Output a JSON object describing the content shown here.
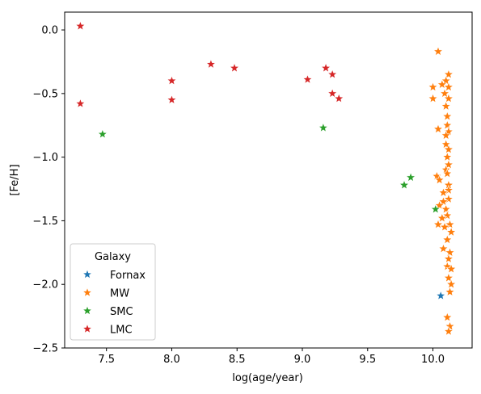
{
  "chart_data": {
    "type": "scatter",
    "xlabel": "log(age/year)",
    "ylabel": "[Fe/H]",
    "xlim": [
      7.18,
      10.3
    ],
    "ylim": [
      -2.5,
      0.14
    ],
    "xticks": [
      7.5,
      8.0,
      8.5,
      9.0,
      9.5,
      10.0
    ],
    "xtick_labels": [
      "7.5",
      "8.0",
      "8.5",
      "9.0",
      "9.5",
      "10.0"
    ],
    "yticks": [
      0.0,
      -0.5,
      -1.0,
      -1.5,
      -2.0,
      -2.5
    ],
    "ytick_labels": [
      "0.0",
      "−0.5",
      "−1.0",
      "−1.5",
      "−2.0",
      "−2.5"
    ],
    "marker": "star",
    "legend": {
      "title": "Galaxy",
      "placement": "lower-left"
    },
    "series": [
      {
        "name": "Fornax",
        "color": "#1f77b4",
        "points": [
          [
            10.06,
            -2.09
          ]
        ]
      },
      {
        "name": "MW",
        "color": "#ff7f0e",
        "points": [
          [
            10.04,
            -0.17
          ],
          [
            10.12,
            -0.35
          ],
          [
            10.1,
            -0.4
          ],
          [
            10.07,
            -0.43
          ],
          [
            10.0,
            -0.45
          ],
          [
            10.12,
            -0.45
          ],
          [
            10.09,
            -0.5
          ],
          [
            10.0,
            -0.54
          ],
          [
            10.12,
            -0.54
          ],
          [
            10.1,
            -0.6
          ],
          [
            10.11,
            -0.68
          ],
          [
            10.11,
            -0.75
          ],
          [
            10.04,
            -0.78
          ],
          [
            10.12,
            -0.8
          ],
          [
            10.1,
            -0.83
          ],
          [
            10.1,
            -0.9
          ],
          [
            10.12,
            -0.94
          ],
          [
            10.11,
            -1.0
          ],
          [
            10.12,
            -1.06
          ],
          [
            10.1,
            -1.1
          ],
          [
            10.11,
            -1.13
          ],
          [
            10.03,
            -1.15
          ],
          [
            10.05,
            -1.18
          ],
          [
            10.12,
            -1.22
          ],
          [
            10.12,
            -1.26
          ],
          [
            10.08,
            -1.28
          ],
          [
            10.12,
            -1.33
          ],
          [
            10.08,
            -1.35
          ],
          [
            10.05,
            -1.38
          ],
          [
            10.1,
            -1.41
          ],
          [
            10.11,
            -1.46
          ],
          [
            10.07,
            -1.48
          ],
          [
            10.04,
            -1.53
          ],
          [
            10.13,
            -1.53
          ],
          [
            10.09,
            -1.55
          ],
          [
            10.14,
            -1.59
          ],
          [
            10.11,
            -1.65
          ],
          [
            10.08,
            -1.72
          ],
          [
            10.13,
            -1.75
          ],
          [
            10.12,
            -1.8
          ],
          [
            10.11,
            -1.86
          ],
          [
            10.14,
            -1.88
          ],
          [
            10.12,
            -1.95
          ],
          [
            10.14,
            -2.0
          ],
          [
            10.13,
            -2.06
          ],
          [
            10.11,
            -2.26
          ],
          [
            10.13,
            -2.33
          ],
          [
            10.12,
            -2.37
          ]
        ]
      },
      {
        "name": "SMC",
        "color": "#2ca02c",
        "points": [
          [
            7.47,
            -0.82
          ],
          [
            9.16,
            -0.77
          ],
          [
            9.83,
            -1.16
          ],
          [
            9.78,
            -1.22
          ],
          [
            10.02,
            -1.41
          ]
        ]
      },
      {
        "name": "LMC",
        "color": "#d62728",
        "points": [
          [
            7.3,
            0.03
          ],
          [
            7.3,
            -0.58
          ],
          [
            8.0,
            -0.4
          ],
          [
            8.0,
            -0.55
          ],
          [
            8.3,
            -0.27
          ],
          [
            8.48,
            -0.3
          ],
          [
            9.04,
            -0.39
          ],
          [
            9.18,
            -0.3
          ],
          [
            9.23,
            -0.35
          ],
          [
            9.23,
            -0.5
          ],
          [
            9.28,
            -0.54
          ]
        ]
      }
    ]
  }
}
